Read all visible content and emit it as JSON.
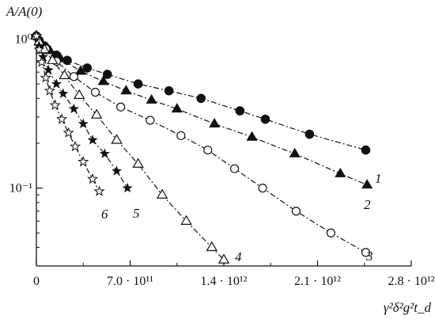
{
  "chart_data": {
    "type": "scatter",
    "title": "",
    "ylabel": "A/A(0)",
    "xlabel": "γ²δ²g²t_d",
    "x_ticks": [
      {
        "value": 0,
        "label": "0"
      },
      {
        "value": 700000000000.0,
        "label": "7.0 · 10¹¹"
      },
      {
        "value": 1400000000000.0,
        "label": "1.4 · 10¹²"
      },
      {
        "value": 2100000000000.0,
        "label": "2.1 · 10¹²"
      },
      {
        "value": 2800000000000.0,
        "label": "2.8 · 10¹²"
      }
    ],
    "y_ticks": [
      {
        "value": 1,
        "label": "10⁰"
      },
      {
        "value": 0.1,
        "label": "10⁻¹"
      }
    ],
    "xlim": [
      0,
      2800000000000.0
    ],
    "ylim": [
      0.03,
      1.15
    ],
    "yscale": "log",
    "legend": "none",
    "grid": false,
    "series": [
      {
        "name": "1",
        "marker": "filled-circle",
        "x": [
          0,
          20000000000.0,
          60000000000.0,
          150000000000.0,
          230000000000.0,
          380000000000.0,
          530000000000.0,
          760000000000.0,
          990000000000.0,
          1230000000000.0,
          1520000000000.0,
          1710000000000.0,
          2040000000000.0,
          2460000000000.0
        ],
        "y": [
          1.05,
          0.98,
          0.9,
          0.78,
          0.72,
          0.64,
          0.58,
          0.5,
          0.45,
          0.4,
          0.33,
          0.29,
          0.23,
          0.18
        ]
      },
      {
        "name": "2",
        "marker": "filled-triangle",
        "x": [
          0,
          40000000000.0,
          100000000000.0,
          180000000000.0,
          330000000000.0,
          500000000000.0,
          670000000000.0,
          860000000000.0,
          1050000000000.0,
          1330000000000.0,
          1610000000000.0,
          1930000000000.0,
          2270000000000.0,
          2470000000000.0
        ],
        "y": [
          1.05,
          0.94,
          0.84,
          0.74,
          0.61,
          0.52,
          0.45,
          0.39,
          0.34,
          0.27,
          0.22,
          0.17,
          0.125,
          0.105
        ]
      },
      {
        "name": "3",
        "marker": "open-circle",
        "x": [
          0,
          70000000000.0,
          150000000000.0,
          280000000000.0,
          440000000000.0,
          630000000000.0,
          850000000000.0,
          1080000000000.0,
          1280000000000.0,
          1480000000000.0,
          1690000000000.0,
          1940000000000.0,
          2200000000000.0,
          2460000000000.0
        ],
        "y": [
          1.05,
          0.86,
          0.71,
          0.56,
          0.44,
          0.35,
          0.285,
          0.225,
          0.18,
          0.135,
          0.1,
          0.07,
          0.05,
          0.037
        ]
      },
      {
        "name": "4",
        "marker": "open-triangle",
        "x": [
          0,
          20000000000.0,
          60000000000.0,
          120000000000.0,
          210000000000.0,
          320000000000.0,
          450000000000.0,
          600000000000.0,
          760000000000.0,
          940000000000.0,
          1120000000000.0,
          1310000000000.0,
          1400000000000.0
        ],
        "y": [
          1.05,
          0.96,
          0.85,
          0.72,
          0.57,
          0.42,
          0.31,
          0.21,
          0.145,
          0.09,
          0.06,
          0.04,
          0.033
        ]
      },
      {
        "name": "5",
        "marker": "filled-star",
        "x": [
          0,
          20000000000.0,
          50000000000.0,
          90000000000.0,
          150000000000.0,
          200000000000.0,
          280000000000.0,
          350000000000.0,
          420000000000.0,
          510000000000.0,
          600000000000.0,
          680000000000.0
        ],
        "y": [
          1.05,
          0.9,
          0.76,
          0.62,
          0.5,
          0.43,
          0.34,
          0.27,
          0.21,
          0.17,
          0.13,
          0.1
        ]
      },
      {
        "name": "6",
        "marker": "open-star",
        "x": [
          0,
          20000000000.0,
          40000000000.0,
          70000000000.0,
          100000000000.0,
          140000000000.0,
          190000000000.0,
          240000000000.0,
          290000000000.0,
          350000000000.0,
          420000000000.0,
          470000000000.0
        ],
        "y": [
          1.05,
          0.85,
          0.7,
          0.55,
          0.45,
          0.36,
          0.29,
          0.235,
          0.19,
          0.15,
          0.115,
          0.095
        ]
      }
    ]
  }
}
